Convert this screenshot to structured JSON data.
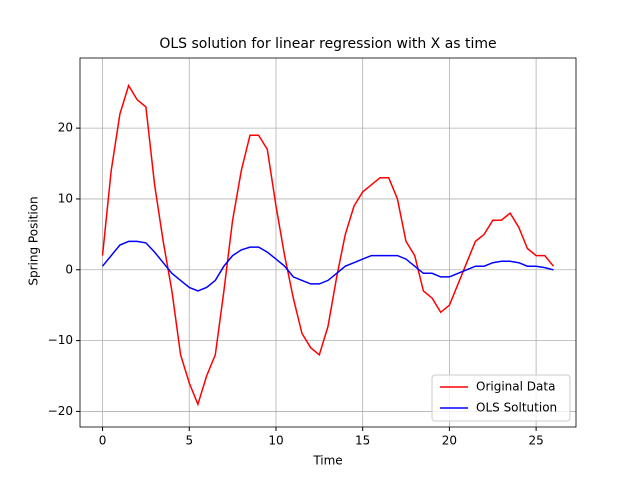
{
  "chart_data": {
    "type": "line",
    "title": "OLS solution for linear regression with X as time",
    "x_label": "Time",
    "y_label": "Spring Position",
    "x": [
      0,
      0.5,
      1,
      1.5,
      2,
      2.5,
      3,
      3.5,
      4,
      4.5,
      5,
      5.5,
      6,
      6.5,
      7,
      7.5,
      8,
      8.5,
      9,
      9.5,
      10,
      10.5,
      11,
      11.5,
      12,
      12.5,
      13,
      13.5,
      14,
      14.5,
      15,
      15.5,
      16,
      16.5,
      17,
      17.5,
      18,
      18.5,
      19,
      19.5,
      20,
      20.5,
      21,
      21.5,
      22,
      22.5,
      23,
      23.5,
      24,
      24.5,
      25,
      25.5,
      26
    ],
    "series": [
      {
        "name": "Original Data",
        "color": "#ff0000",
        "values": [
          2,
          14,
          22,
          26,
          24,
          23,
          12,
          4,
          -3,
          -12,
          -16,
          -19,
          -15,
          -12,
          -3,
          7,
          14,
          19,
          19,
          17,
          9,
          2,
          -4,
          -9,
          -11,
          -12,
          -8,
          -1,
          5,
          9,
          11,
          12,
          13,
          13,
          10,
          4,
          2,
          -3,
          -4,
          -6,
          -5,
          -2,
          1,
          4,
          5,
          7,
          7,
          8,
          6,
          3,
          2,
          2,
          0.5
        ]
      },
      {
        "name": "OLS Soltution",
        "color": "#0000ff",
        "values": [
          0.5,
          2,
          3.5,
          4,
          4,
          3.8,
          2.5,
          1,
          -0.5,
          -1.5,
          -2.5,
          -3,
          -2.5,
          -1.5,
          0.5,
          2,
          2.8,
          3.2,
          3.2,
          2.5,
          1.5,
          0.5,
          -1,
          -1.5,
          -2,
          -2,
          -1.5,
          -0.5,
          0.5,
          1,
          1.5,
          2,
          2,
          2,
          2,
          1.5,
          0.5,
          -0.5,
          -0.5,
          -1,
          -1,
          -0.5,
          0,
          0.5,
          0.5,
          1,
          1.2,
          1.2,
          1,
          0.5,
          0.5,
          0.3,
          0
        ]
      }
    ],
    "xlim": [
      -1.3,
      27.3
    ],
    "ylim": [
      -22.2,
      29.9
    ],
    "xticks": [
      0,
      5,
      10,
      15,
      20,
      25
    ],
    "yticks": [
      {
        "value": -20,
        "label": "−20"
      },
      {
        "value": -10,
        "label": "−10"
      },
      0,
      10,
      20
    ],
    "grid": true,
    "legend": "lower right"
  }
}
